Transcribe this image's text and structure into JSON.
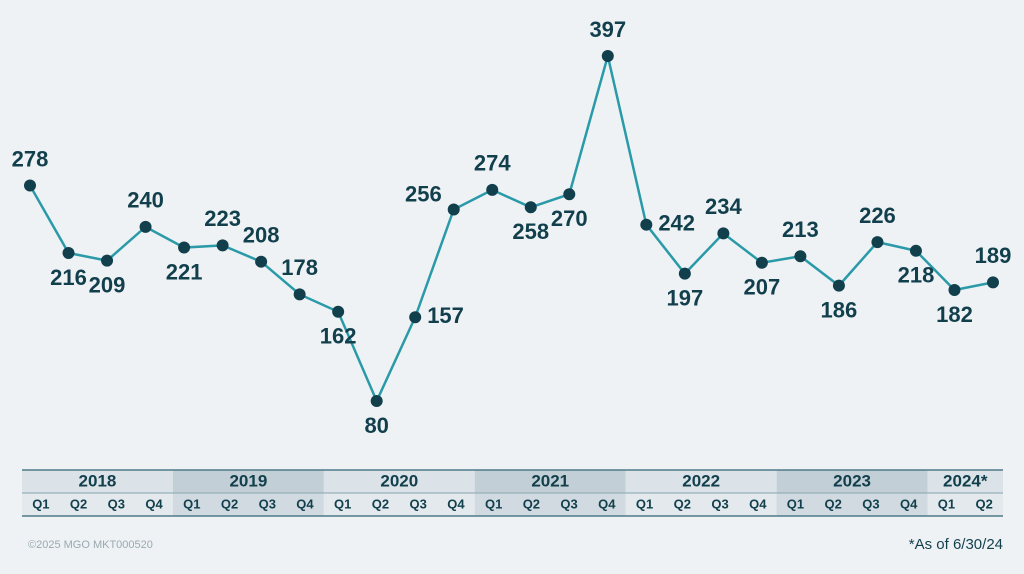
{
  "chart_data": {
    "type": "line",
    "categories": [
      "Q1",
      "Q2",
      "Q3",
      "Q4",
      "Q1",
      "Q2",
      "Q3",
      "Q4",
      "Q1",
      "Q2",
      "Q3",
      "Q4",
      "Q1",
      "Q2",
      "Q3",
      "Q4",
      "Q1",
      "Q2",
      "Q3",
      "Q4",
      "Q1",
      "Q2",
      "Q3",
      "Q4",
      "Q1",
      "Q2"
    ],
    "years": [
      "2018",
      "2019",
      "2020",
      "2021",
      "2022",
      "2023",
      "2024*"
    ],
    "series": [
      {
        "color": "#2a9aa8",
        "values": [
          278,
          216,
          209,
          240,
          221,
          223,
          208,
          178,
          162,
          80,
          157,
          256,
          274,
          258,
          270,
          397,
          242,
          197,
          234,
          207,
          213,
          186,
          226,
          218,
          182,
          189
        ]
      }
    ],
    "footnote": "*As of 6/30/24",
    "copyright": "©2025 MGO  MKT000520"
  }
}
